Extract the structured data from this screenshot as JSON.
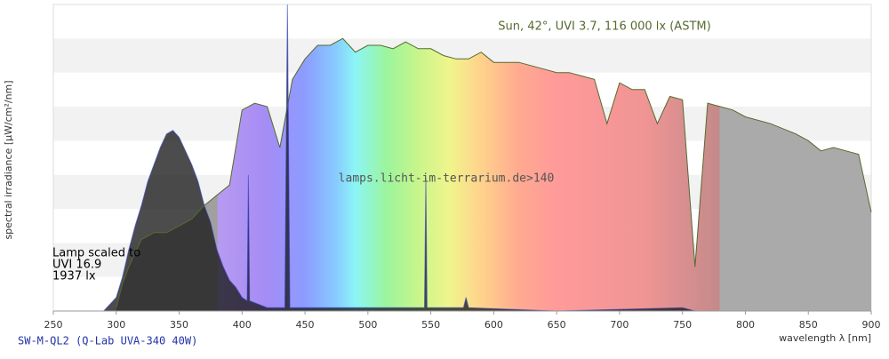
{
  "chart_data": {
    "type": "area",
    "y_label": "spectral irradiance [µW/cm²/nm]",
    "x_label": "wavelength λ [nm]",
    "watermark": "lamps.licht-im-terrarium.de>140",
    "annotation": [
      "Lamp scaled to",
      "UVI 16.9",
      "1937 lx"
    ],
    "xlim": [
      250,
      900
    ],
    "xticks": [
      250,
      300,
      350,
      400,
      450,
      500,
      550,
      600,
      650,
      700,
      750,
      800,
      850,
      900
    ],
    "ylim": [
      0,
      9
    ],
    "grid": "bands",
    "series": [
      {
        "name": "Sun, 42°, UVI 3.7, 116 000 lx (ASTM)",
        "color": "#556b2f",
        "x": [
          300,
          305,
          310,
          315,
          320,
          330,
          340,
          350,
          360,
          370,
          380,
          390,
          400,
          410,
          420,
          430,
          440,
          450,
          460,
          470,
          480,
          490,
          500,
          510,
          520,
          530,
          540,
          550,
          560,
          570,
          580,
          590,
          600,
          620,
          640,
          650,
          660,
          670,
          680,
          690,
          700,
          710,
          720,
          730,
          740,
          750,
          760,
          770,
          780,
          790,
          800,
          820,
          840,
          850,
          860,
          870,
          880,
          890,
          900
        ],
        "values": [
          0.1,
          0.8,
          1.3,
          1.7,
          2.1,
          2.3,
          2.3,
          2.5,
          2.7,
          3.1,
          3.4,
          3.7,
          5.9,
          6.1,
          6.0,
          4.8,
          6.8,
          7.4,
          7.8,
          7.8,
          8.0,
          7.6,
          7.8,
          7.8,
          7.7,
          7.9,
          7.7,
          7.7,
          7.5,
          7.4,
          7.4,
          7.6,
          7.3,
          7.3,
          7.1,
          7.0,
          7.0,
          6.9,
          6.8,
          5.5,
          6.7,
          6.5,
          6.5,
          5.5,
          6.3,
          6.2,
          1.3,
          6.1,
          6.0,
          5.9,
          5.7,
          5.5,
          5.2,
          5.0,
          4.7,
          4.8,
          4.7,
          4.6,
          2.9
        ]
      },
      {
        "name": "SW-M-QL2 (Q-Lab UVA-340 40W)",
        "color": "#1a1a1a",
        "x": [
          290,
          300,
          305,
          310,
          315,
          320,
          325,
          330,
          335,
          340,
          345,
          350,
          355,
          360,
          365,
          370,
          375,
          380,
          385,
          390,
          395,
          400,
          404,
          405,
          406,
          420,
          434,
          436,
          438,
          500,
          545,
          546,
          547,
          576,
          578,
          580,
          650,
          750,
          760
        ],
        "values": [
          0,
          0.4,
          1.0,
          1.8,
          2.5,
          3.1,
          3.8,
          4.3,
          4.8,
          5.2,
          5.3,
          5.1,
          4.7,
          4.3,
          3.8,
          3.1,
          2.6,
          1.8,
          1.3,
          0.9,
          0.7,
          0.4,
          0.3,
          4.0,
          0.3,
          0.1,
          0.1,
          9.0,
          0.1,
          0.1,
          0.1,
          3.9,
          0.1,
          0.1,
          0.4,
          0.1,
          0.0,
          0.1,
          0.0
        ]
      }
    ]
  }
}
